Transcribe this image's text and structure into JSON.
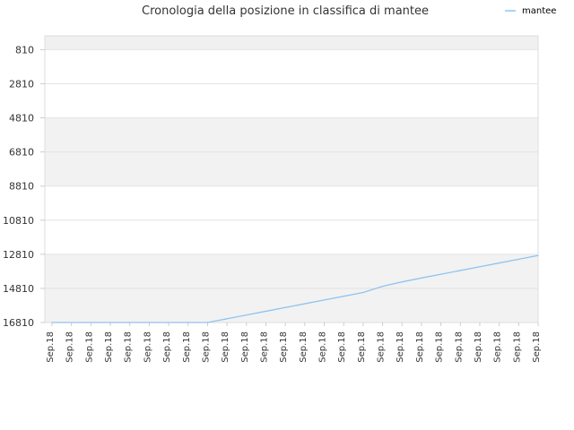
{
  "chart_data": {
    "type": "line",
    "title": "Cronologia della posizione in classifica di mantee",
    "xlabel": "",
    "ylabel": "",
    "y_reversed": true,
    "ylim": [
      810,
      16810
    ],
    "y_ticks": [
      810,
      2810,
      4810,
      6810,
      8810,
      10810,
      12810,
      14810,
      16810
    ],
    "y_tick_labels": [
      "810",
      "2810",
      "4810",
      "6810",
      "8810",
      "10810",
      "12810",
      "14810",
      "16810"
    ],
    "categories": [
      "Sep.18",
      "Sep.18",
      "Sep.18",
      "Sep.18",
      "Sep.18",
      "Sep.18",
      "Sep.18",
      "Sep.18",
      "Sep.18",
      "Sep.18",
      "Sep.18",
      "Sep.18",
      "Sep.18",
      "Sep.18",
      "Sep.18",
      "Sep.18",
      "Sep.18",
      "Sep.18",
      "Sep.18",
      "Sep.18",
      "Sep.18",
      "Sep.18",
      "Sep.18",
      "Sep.18",
      "Sep.18",
      "Sep.18"
    ],
    "series": [
      {
        "name": "mantee",
        "color": "#90c4f0",
        "values": [
          16810,
          16810,
          16810,
          16810,
          16810,
          16810,
          16810,
          16810,
          16810,
          16590,
          16370,
          16150,
          15930,
          15710,
          15490,
          15270,
          15050,
          14690,
          14430,
          14200,
          13980,
          13760,
          13540,
          13320,
          13100,
          12880
        ]
      }
    ],
    "legend_position": "top-right",
    "grid": true,
    "band_colors": [
      "#f2f2f2",
      "#ffffff"
    ]
  }
}
